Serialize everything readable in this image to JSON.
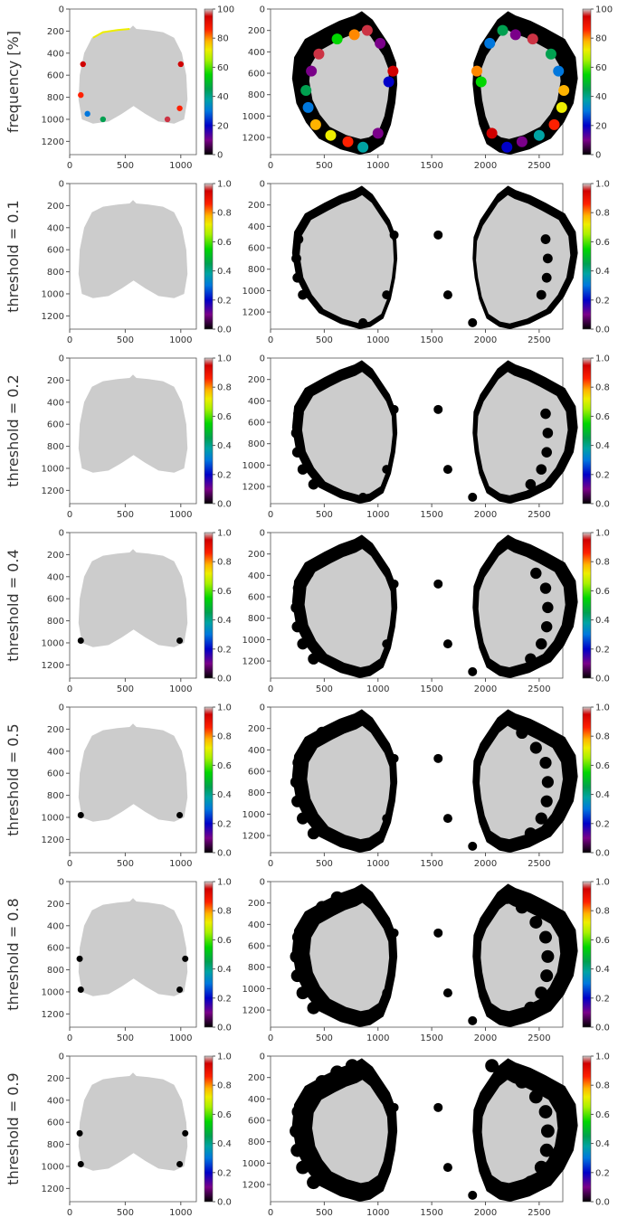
{
  "theme": {
    "gray_fill": "#cccccc",
    "black_fill": "#000000",
    "axis_color": "#555555",
    "colormap": "nipy_spectral"
  },
  "chart_data": [
    {
      "type": "heatmap",
      "row_label": "frequency [%]",
      "colorbar": {
        "min": 0,
        "max": 100,
        "ticks": [
          "0",
          "20",
          "40",
          "60",
          "80",
          "100"
        ]
      },
      "panels": [
        {
          "name": "dorsal-view",
          "xlim": [
            0,
            1140
          ],
          "ylim": [
            0,
            1320
          ],
          "xticks": [
            "0",
            "500",
            "1000"
          ],
          "yticks": [
            "0",
            "200",
            "400",
            "600",
            "800",
            "1000",
            "1200"
          ]
        },
        {
          "name": "flatmap-view",
          "xlim": [
            0,
            2720
          ],
          "ylim": [
            0,
            1360
          ],
          "xticks": [
            "0",
            "500",
            "1000",
            "1500",
            "2000",
            "2500"
          ],
          "yticks": [
            "0",
            "200",
            "400",
            "600",
            "800",
            "1000",
            "1200"
          ]
        }
      ]
    },
    {
      "type": "heatmap",
      "row_label": "threshold = 0.1",
      "colorbar": {
        "min": 0,
        "max": 1,
        "ticks": [
          "0.0",
          "0.2",
          "0.4",
          "0.6",
          "0.8",
          "1.0"
        ]
      }
    },
    {
      "type": "heatmap",
      "row_label": "threshold = 0.2",
      "colorbar": {
        "min": 0,
        "max": 1,
        "ticks": [
          "0.0",
          "0.2",
          "0.4",
          "0.6",
          "0.8",
          "1.0"
        ]
      }
    },
    {
      "type": "heatmap",
      "row_label": "threshold = 0.4",
      "colorbar": {
        "min": 0,
        "max": 1,
        "ticks": [
          "0.0",
          "0.2",
          "0.4",
          "0.6",
          "0.8",
          "1.0"
        ]
      }
    },
    {
      "type": "heatmap",
      "row_label": "threshold = 0.5",
      "colorbar": {
        "min": 0,
        "max": 1,
        "ticks": [
          "0.0",
          "0.2",
          "0.4",
          "0.6",
          "0.8",
          "1.0"
        ]
      }
    },
    {
      "type": "heatmap",
      "row_label": "threshold = 0.8",
      "colorbar": {
        "min": 0,
        "max": 1,
        "ticks": [
          "0.0",
          "0.2",
          "0.4",
          "0.6",
          "0.8",
          "1.0"
        ]
      }
    },
    {
      "type": "heatmap",
      "row_label": "threshold = 0.9",
      "colorbar": {
        "min": 0,
        "max": 1,
        "ticks": [
          "0.0",
          "0.2",
          "0.4",
          "0.6",
          "0.8",
          "1.0"
        ]
      }
    }
  ]
}
